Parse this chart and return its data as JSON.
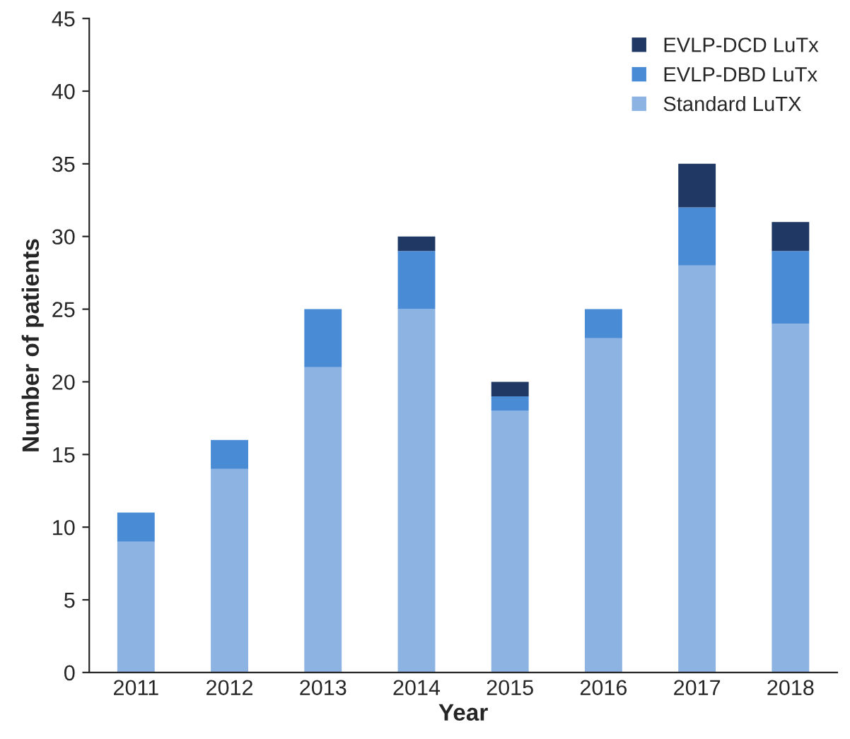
{
  "chart_data": {
    "type": "bar",
    "stacked": true,
    "xlabel": "Year",
    "ylabel": "Number of patients",
    "categories": [
      "2011",
      "2012",
      "2013",
      "2014",
      "2015",
      "2016",
      "2017",
      "2018"
    ],
    "series": [
      {
        "name": "Standard LuTX",
        "color": "#8db3e2",
        "values": [
          9,
          14,
          21,
          25,
          18,
          23,
          28,
          24
        ]
      },
      {
        "name": "EVLP-DBD LuTx",
        "color": "#4a8bd6",
        "values": [
          2,
          2,
          4,
          4,
          1,
          2,
          4,
          5
        ]
      },
      {
        "name": "EVLP-DCD LuTx",
        "color": "#1f3864",
        "values": [
          0,
          0,
          0,
          1,
          1,
          0,
          3,
          2
        ]
      }
    ],
    "ylim": [
      0,
      45
    ],
    "yticks": [
      0,
      5,
      10,
      15,
      20,
      25,
      30,
      35,
      40,
      45
    ],
    "grid": false,
    "legend": "top right"
  }
}
